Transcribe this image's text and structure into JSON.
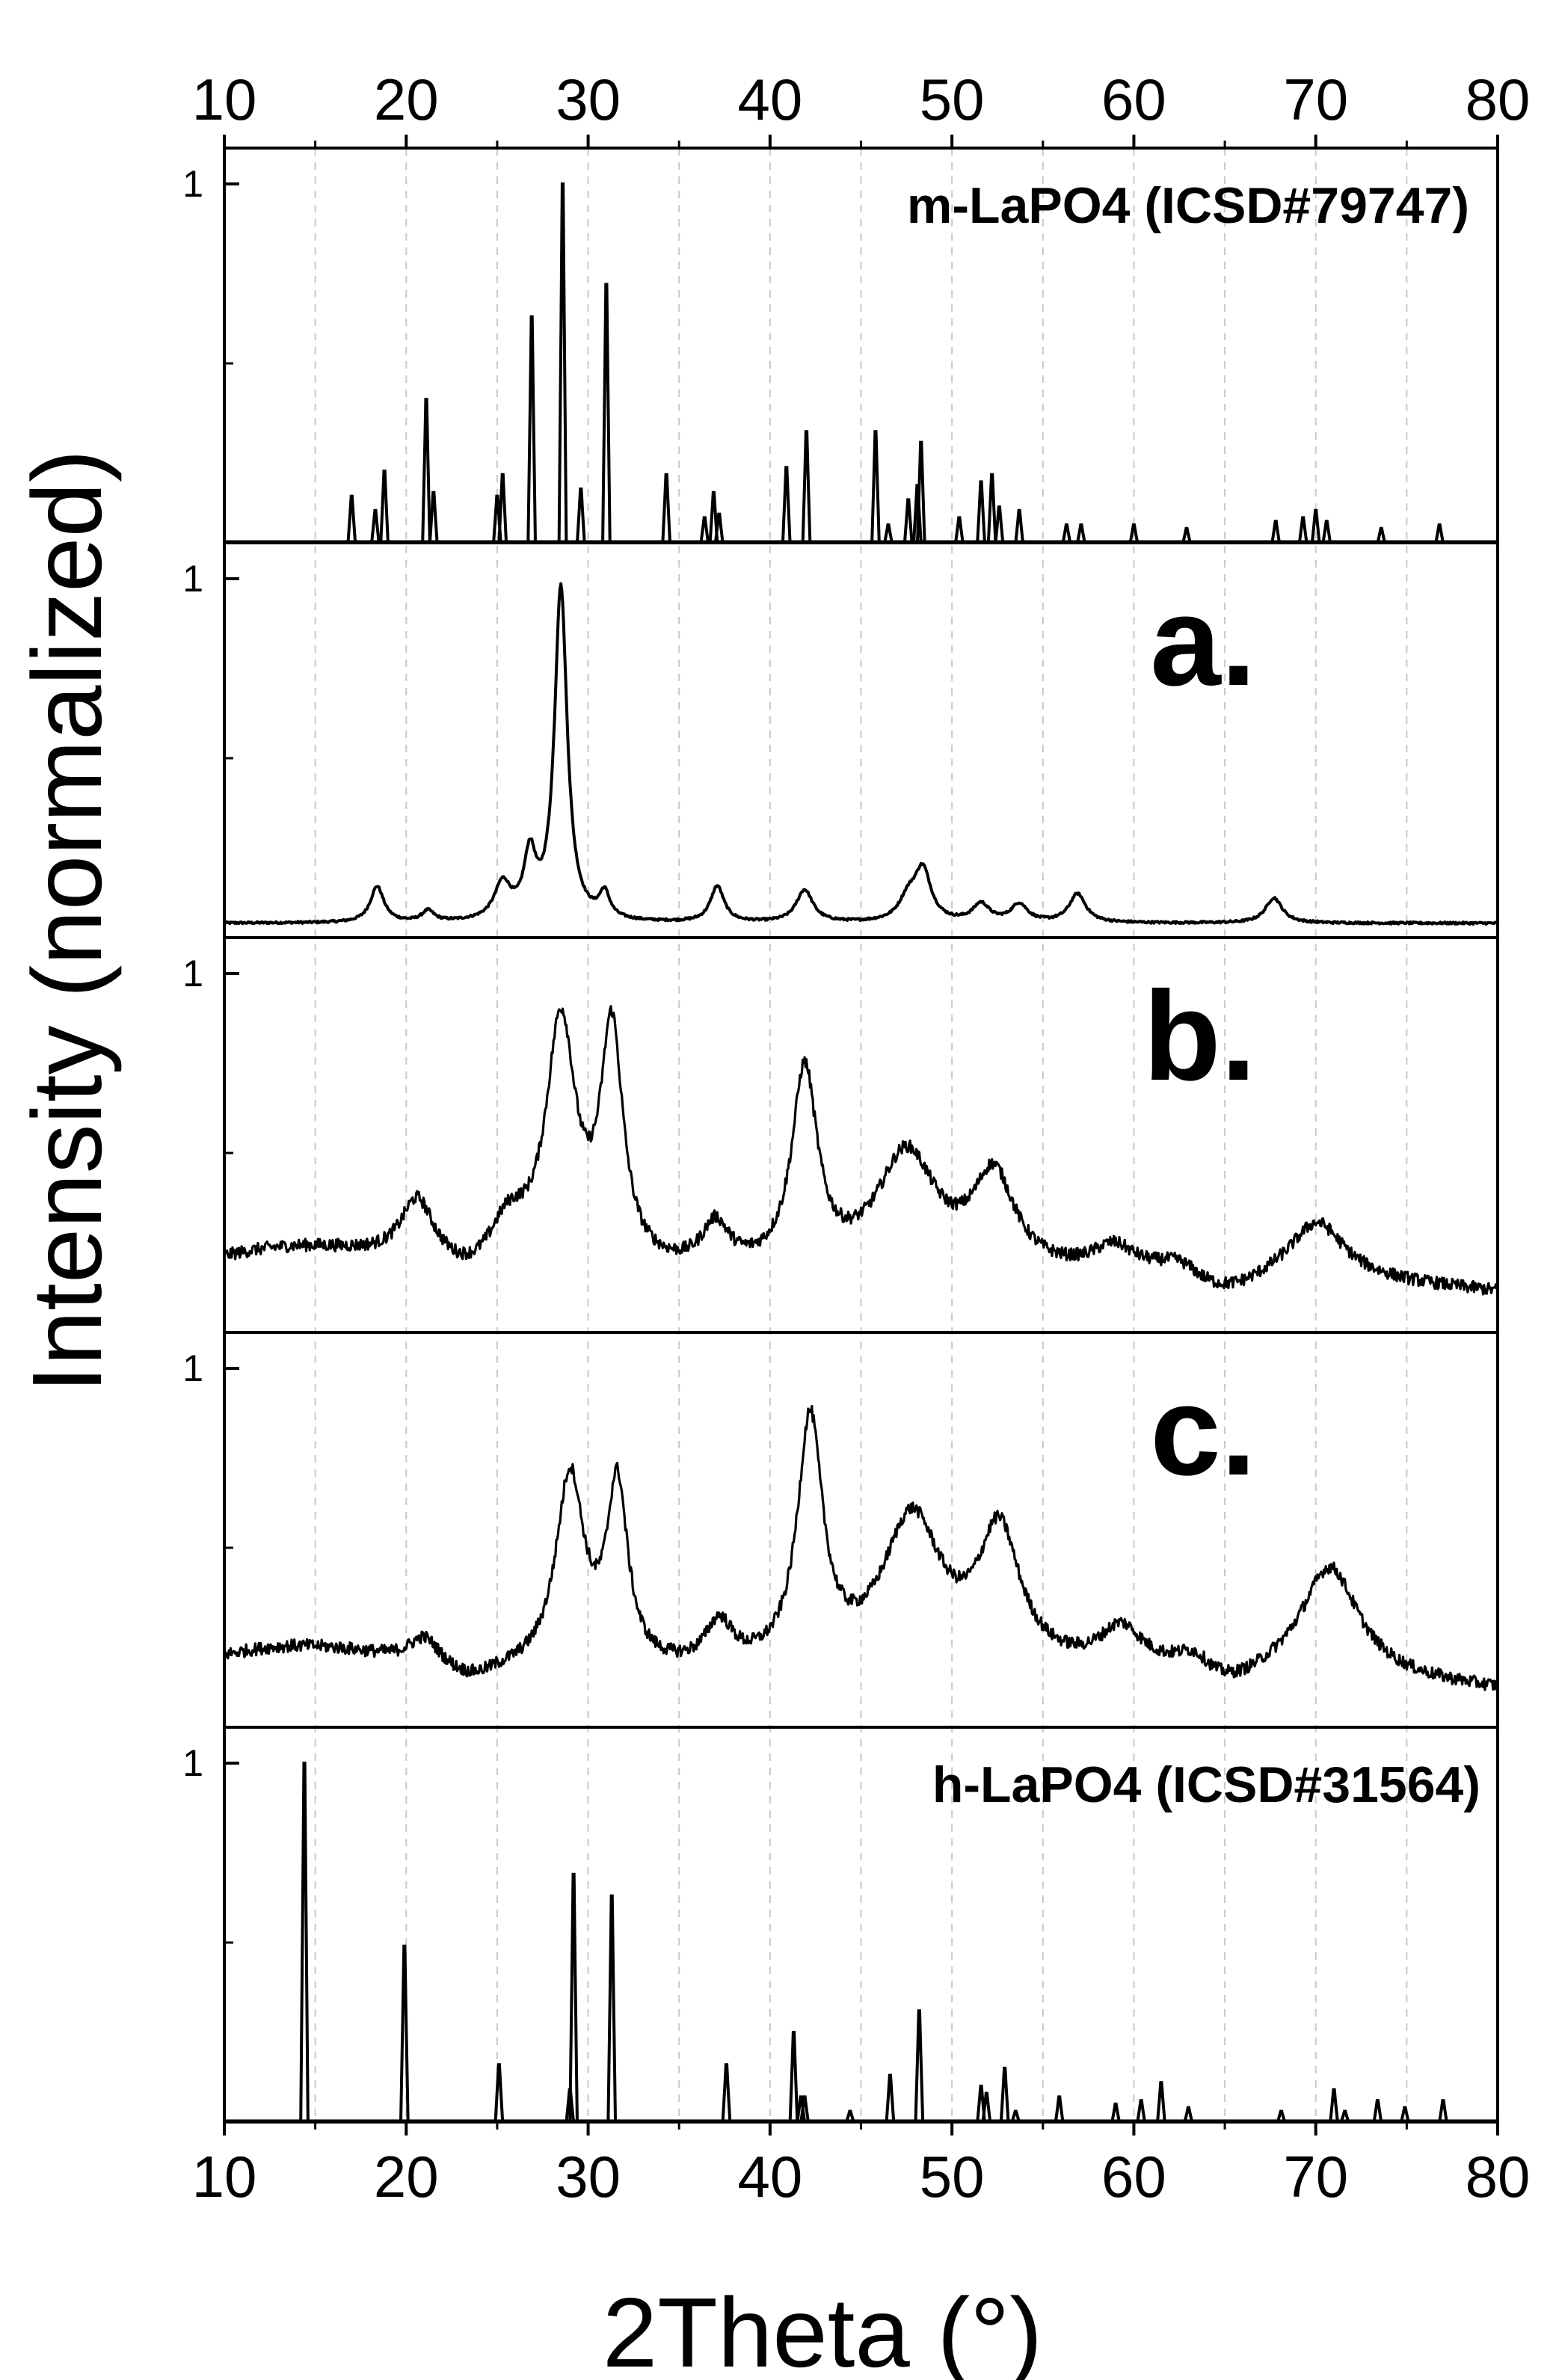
{
  "chart_data": {
    "type": "line",
    "xlabel": "2Theta (°)",
    "ylabel": "Intensity (normalized)",
    "xlim": [
      10,
      80
    ],
    "xticks": [
      "10",
      "20",
      "30",
      "40",
      "50",
      "60",
      "70",
      "80"
    ],
    "ytick_label": "1",
    "grid": "vertical dashed every 5°",
    "panels": [
      {
        "id": "m-ref",
        "label": "m-LaPO4 (ICSD#79747)",
        "kind": "stick",
        "ylim": [
          0,
          1
        ],
        "peaks": [
          {
            "x": 17.0,
            "y": 0.13
          },
          {
            "x": 18.3,
            "y": 0.09
          },
          {
            "x": 18.8,
            "y": 0.2
          },
          {
            "x": 21.1,
            "y": 0.4
          },
          {
            "x": 21.5,
            "y": 0.14
          },
          {
            "x": 25.0,
            "y": 0.13
          },
          {
            "x": 25.3,
            "y": 0.19
          },
          {
            "x": 26.9,
            "y": 0.63
          },
          {
            "x": 28.6,
            "y": 1.0
          },
          {
            "x": 29.6,
            "y": 0.15
          },
          {
            "x": 31.0,
            "y": 0.72
          },
          {
            "x": 34.3,
            "y": 0.19
          },
          {
            "x": 36.4,
            "y": 0.07
          },
          {
            "x": 36.9,
            "y": 0.14
          },
          {
            "x": 37.2,
            "y": 0.08
          },
          {
            "x": 40.9,
            "y": 0.21
          },
          {
            "x": 42.0,
            "y": 0.31
          },
          {
            "x": 45.8,
            "y": 0.31
          },
          {
            "x": 46.5,
            "y": 0.05
          },
          {
            "x": 47.6,
            "y": 0.12
          },
          {
            "x": 48.1,
            "y": 0.16
          },
          {
            "x": 48.3,
            "y": 0.28
          },
          {
            "x": 50.4,
            "y": 0.07
          },
          {
            "x": 51.6,
            "y": 0.17
          },
          {
            "x": 52.2,
            "y": 0.19
          },
          {
            "x": 52.6,
            "y": 0.1
          },
          {
            "x": 53.7,
            "y": 0.09
          },
          {
            "x": 56.3,
            "y": 0.05
          },
          {
            "x": 57.1,
            "y": 0.05
          },
          {
            "x": 60.0,
            "y": 0.05
          },
          {
            "x": 62.9,
            "y": 0.04
          },
          {
            "x": 67.8,
            "y": 0.06
          },
          {
            "x": 69.3,
            "y": 0.07
          },
          {
            "x": 70.0,
            "y": 0.09
          },
          {
            "x": 70.6,
            "y": 0.06
          },
          {
            "x": 73.6,
            "y": 0.04
          },
          {
            "x": 76.8,
            "y": 0.05
          }
        ]
      },
      {
        "id": "a",
        "label": "a.",
        "kind": "profile",
        "ylim": [
          0,
          1
        ],
        "baseline": 0.04,
        "peaks": [
          {
            "x": 18.4,
            "y": 0.1,
            "w": 0.45
          },
          {
            "x": 21.2,
            "y": 0.03,
            "w": 0.4
          },
          {
            "x": 25.3,
            "y": 0.1,
            "w": 0.55
          },
          {
            "x": 26.8,
            "y": 0.17,
            "w": 0.4
          },
          {
            "x": 28.5,
            "y": 0.93,
            "w": 0.42
          },
          {
            "x": 30.9,
            "y": 0.07,
            "w": 0.35
          },
          {
            "x": 37.1,
            "y": 0.1,
            "w": 0.45
          },
          {
            "x": 41.9,
            "y": 0.09,
            "w": 0.55
          },
          {
            "x": 47.6,
            "y": 0.06,
            "w": 0.6
          },
          {
            "x": 48.4,
            "y": 0.14,
            "w": 0.55
          },
          {
            "x": 51.6,
            "y": 0.05,
            "w": 0.55
          },
          {
            "x": 53.7,
            "y": 0.05,
            "w": 0.55
          },
          {
            "x": 56.9,
            "y": 0.08,
            "w": 0.55
          },
          {
            "x": 67.7,
            "y": 0.07,
            "w": 0.55
          }
        ]
      },
      {
        "id": "b",
        "label": "b.",
        "kind": "profile",
        "ylim": [
          0,
          1
        ],
        "baseline": 0.15,
        "peaks": [
          {
            "x": 20.6,
            "y": 0.17,
            "w": 1.1
          },
          {
            "x": 25.6,
            "y": 0.12,
            "w": 1.3
          },
          {
            "x": 28.5,
            "y": 0.68,
            "w": 1.0
          },
          {
            "x": 31.3,
            "y": 0.65,
            "w": 0.75
          },
          {
            "x": 37.0,
            "y": 0.12,
            "w": 0.9
          },
          {
            "x": 41.9,
            "y": 0.55,
            "w": 0.85
          },
          {
            "x": 47.5,
            "y": 0.33,
            "w": 2.0
          },
          {
            "x": 52.3,
            "y": 0.26,
            "w": 1.4
          },
          {
            "x": 58.9,
            "y": 0.07,
            "w": 1.4
          },
          {
            "x": 62.5,
            "y": 0.04,
            "w": 1.3
          },
          {
            "x": 70.1,
            "y": 0.15,
            "w": 1.8
          }
        ]
      },
      {
        "id": "c",
        "label": "c.",
        "kind": "profile",
        "ylim": [
          0,
          1
        ],
        "baseline": 0.14,
        "peaks": [
          {
            "x": 21.0,
            "y": 0.07,
            "w": 1.0
          },
          {
            "x": 29.0,
            "y": 0.54,
            "w": 0.95
          },
          {
            "x": 31.6,
            "y": 0.5,
            "w": 0.7
          },
          {
            "x": 37.2,
            "y": 0.12,
            "w": 0.9
          },
          {
            "x": 42.2,
            "y": 0.68,
            "w": 0.85
          },
          {
            "x": 47.8,
            "y": 0.42,
            "w": 2.0
          },
          {
            "x": 52.6,
            "y": 0.37,
            "w": 1.4
          },
          {
            "x": 59.3,
            "y": 0.11,
            "w": 1.4
          },
          {
            "x": 63.3,
            "y": 0.06,
            "w": 1.2
          },
          {
            "x": 70.8,
            "y": 0.3,
            "w": 1.9
          }
        ]
      },
      {
        "id": "h-ref",
        "label": "h-LaPO4 (ICSD#31564)",
        "kind": "stick",
        "ylim": [
          0,
          1
        ],
        "peaks": [
          {
            "x": 14.4,
            "y": 1.0
          },
          {
            "x": 19.9,
            "y": 0.49
          },
          {
            "x": 25.1,
            "y": 0.16
          },
          {
            "x": 29.0,
            "y": 0.09
          },
          {
            "x": 29.2,
            "y": 0.69
          },
          {
            "x": 31.3,
            "y": 0.63
          },
          {
            "x": 37.6,
            "y": 0.16
          },
          {
            "x": 41.3,
            "y": 0.25
          },
          {
            "x": 41.7,
            "y": 0.07
          },
          {
            "x": 41.9,
            "y": 0.07
          },
          {
            "x": 44.4,
            "y": 0.03
          },
          {
            "x": 46.6,
            "y": 0.13
          },
          {
            "x": 48.2,
            "y": 0.31
          },
          {
            "x": 51.6,
            "y": 0.1
          },
          {
            "x": 51.9,
            "y": 0.08
          },
          {
            "x": 52.9,
            "y": 0.15
          },
          {
            "x": 53.5,
            "y": 0.03
          },
          {
            "x": 55.9,
            "y": 0.07
          },
          {
            "x": 59.0,
            "y": 0.05
          },
          {
            "x": 60.4,
            "y": 0.06
          },
          {
            "x": 61.5,
            "y": 0.11
          },
          {
            "x": 63.0,
            "y": 0.04
          },
          {
            "x": 68.1,
            "y": 0.03
          },
          {
            "x": 71.0,
            "y": 0.09
          },
          {
            "x": 71.6,
            "y": 0.03
          },
          {
            "x": 73.4,
            "y": 0.06
          },
          {
            "x": 74.9,
            "y": 0.04
          },
          {
            "x": 77.0,
            "y": 0.06
          }
        ]
      }
    ]
  }
}
